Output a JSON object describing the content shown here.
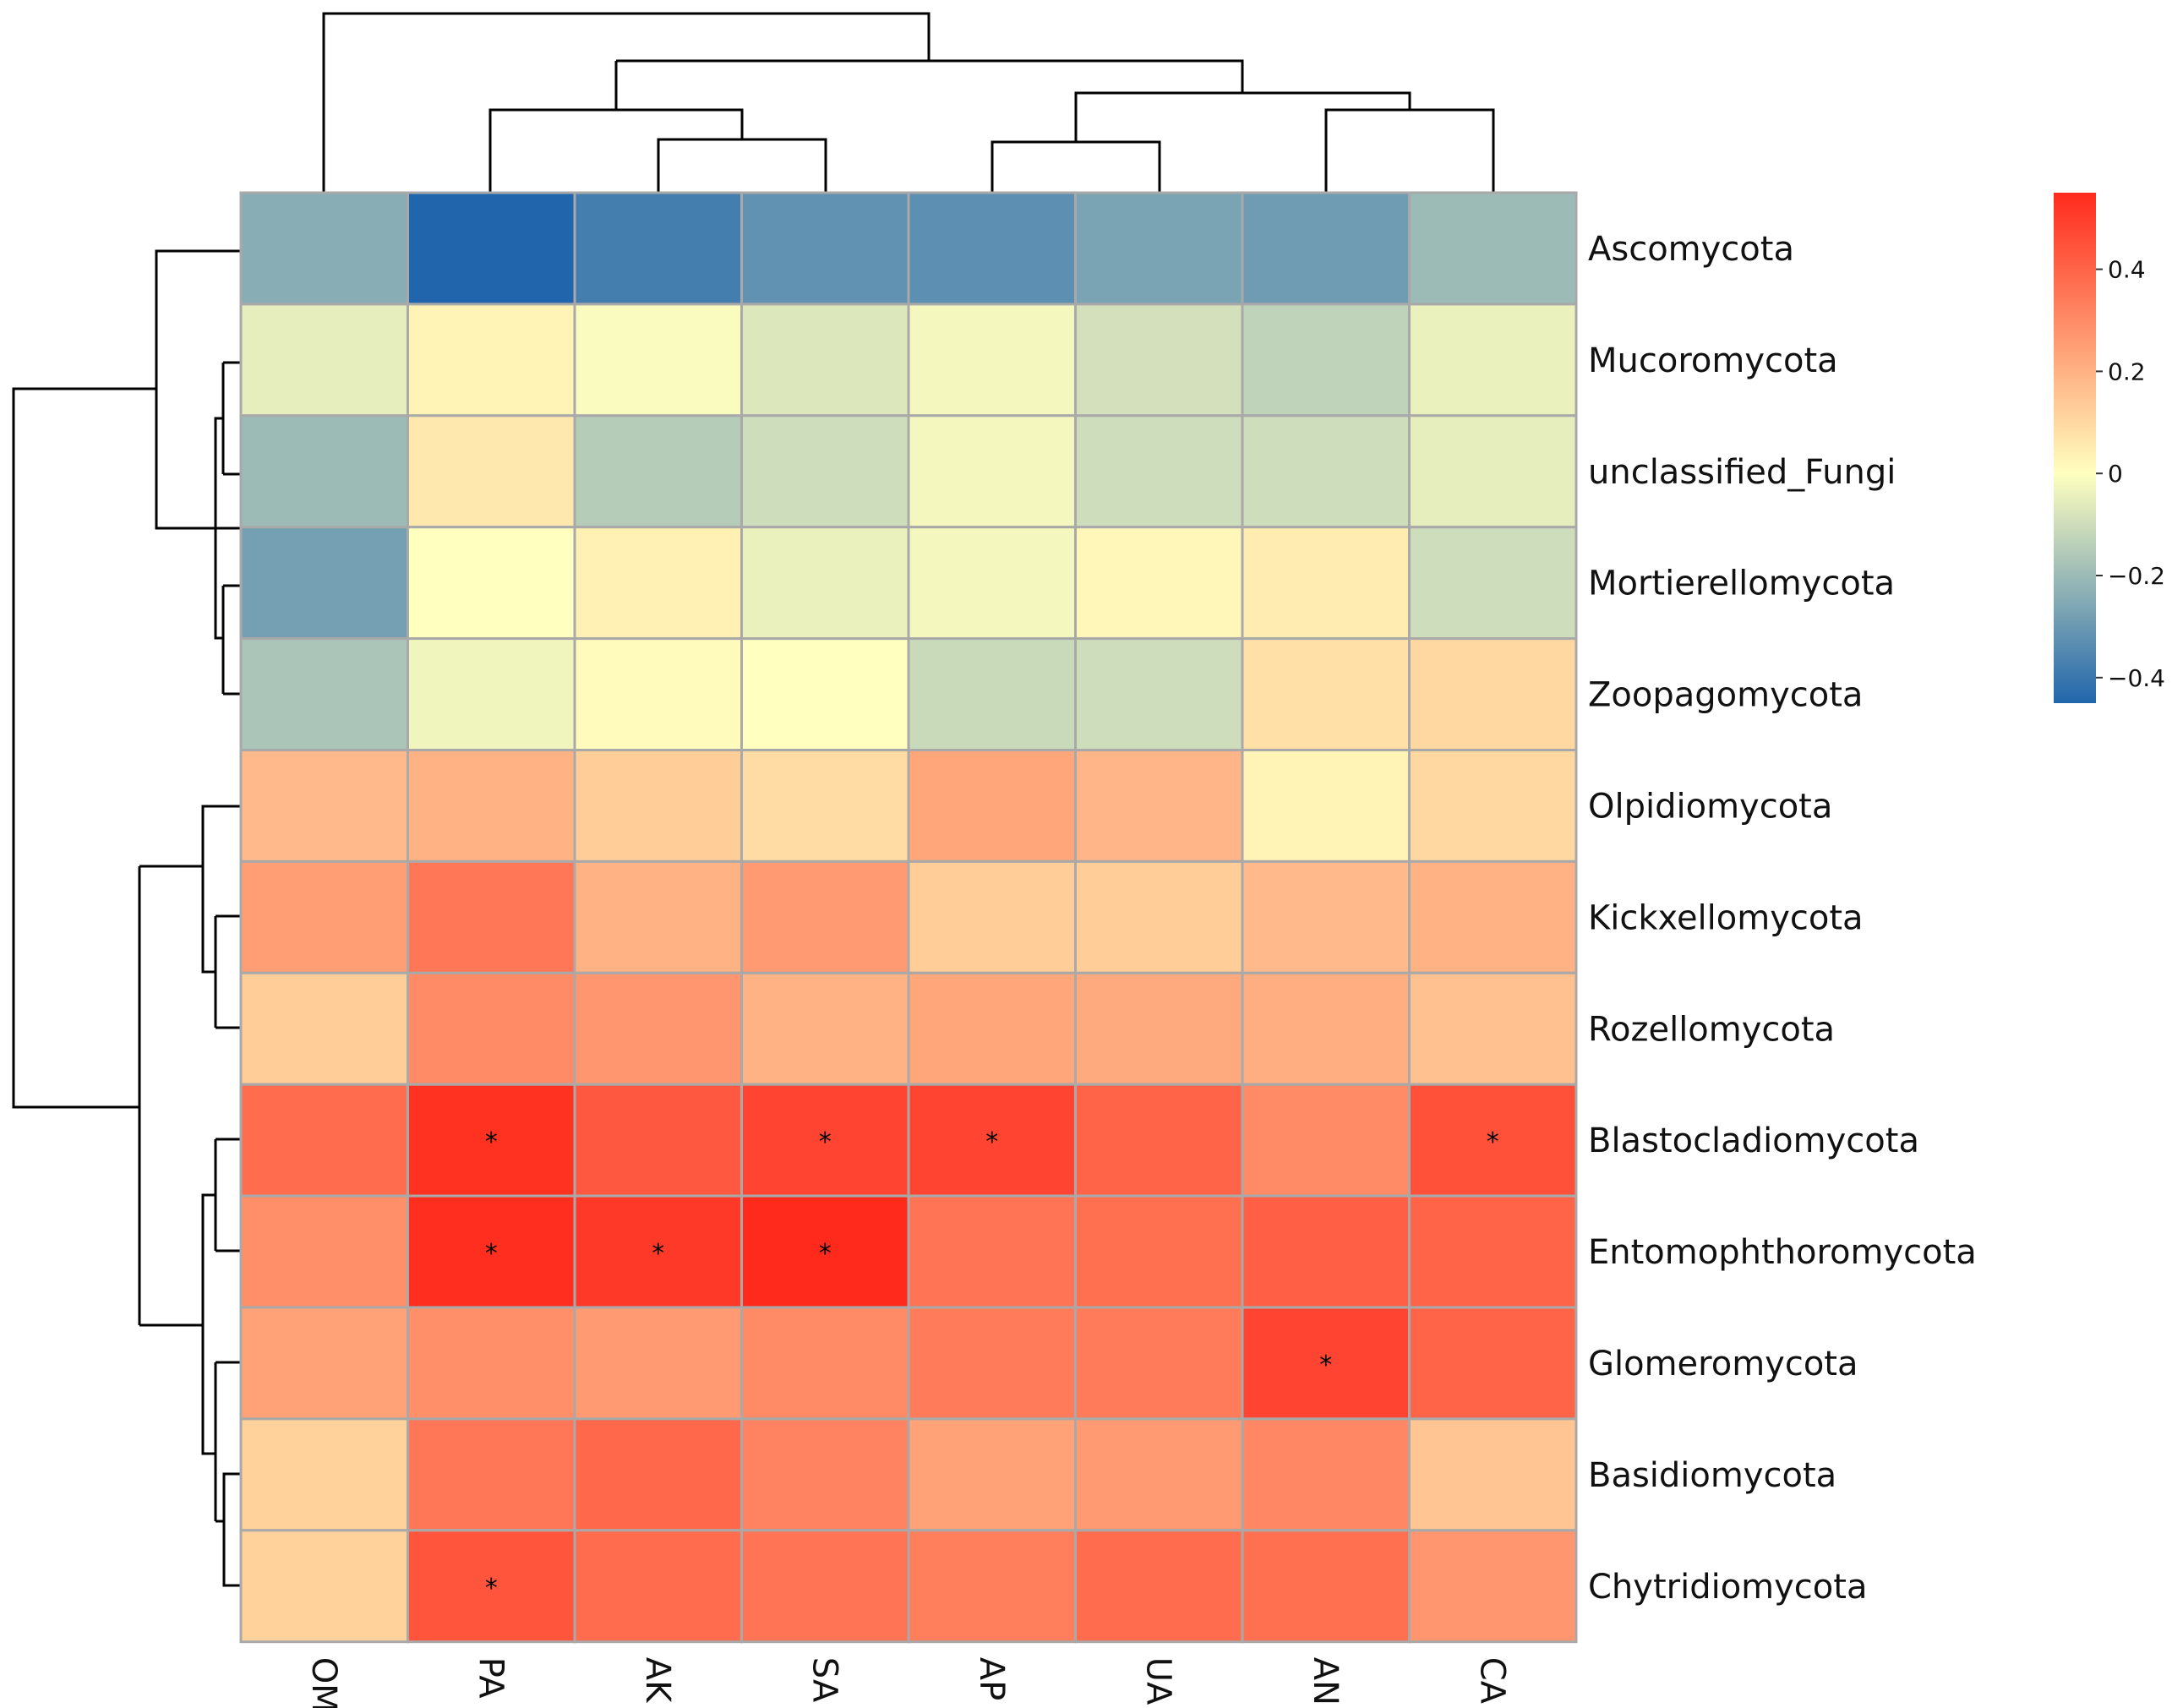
{
  "chart_data": {
    "type": "heatmap",
    "title": "",
    "columns": [
      "OM",
      "PA",
      "AK",
      "SA",
      "AP",
      "UA",
      "AN",
      "CA"
    ],
    "rows": [
      "Ascomycota",
      "Mucoromycota",
      "unclassified_Fungi",
      "Mortierellomycota",
      "Zoopagomycota",
      "Olpidiomycota",
      "Kickxellomycota",
      "Rozellomycota",
      "Blastocladiomycota",
      "Entomophthoromycota",
      "Glomeromycota",
      "Basidiomycota",
      "Chytridiomycota"
    ],
    "values": [
      [
        -0.24,
        -0.45,
        -0.38,
        -0.32,
        -0.33,
        -0.27,
        -0.29,
        -0.2
      ],
      [
        -0.05,
        0.03,
        -0.01,
        -0.07,
        -0.02,
        -0.09,
        -0.13,
        -0.04
      ],
      [
        -0.2,
        0.06,
        -0.15,
        -0.1,
        -0.02,
        -0.1,
        -0.1,
        -0.05
      ],
      [
        -0.28,
        0.0,
        0.04,
        -0.04,
        -0.02,
        0.02,
        0.05,
        -0.1
      ],
      [
        -0.17,
        -0.03,
        0.01,
        0.0,
        -0.11,
        -0.1,
        0.08,
        0.1
      ],
      [
        0.18,
        0.2,
        0.13,
        0.09,
        0.23,
        0.19,
        0.03,
        0.1
      ],
      [
        0.25,
        0.35,
        0.2,
        0.26,
        0.13,
        0.13,
        0.18,
        0.2
      ],
      [
        0.13,
        0.3,
        0.27,
        0.2,
        0.23,
        0.22,
        0.21,
        0.16
      ],
      [
        0.38,
        0.53,
        0.43,
        0.48,
        0.48,
        0.4,
        0.3,
        0.45
      ],
      [
        0.29,
        0.54,
        0.51,
        0.55,
        0.36,
        0.37,
        0.41,
        0.4
      ],
      [
        0.24,
        0.29,
        0.26,
        0.3,
        0.34,
        0.34,
        0.48,
        0.4
      ],
      [
        0.12,
        0.35,
        0.39,
        0.32,
        0.24,
        0.26,
        0.31,
        0.15
      ],
      [
        0.12,
        0.44,
        0.38,
        0.36,
        0.33,
        0.38,
        0.37,
        0.27
      ]
    ],
    "significance": [
      [
        "",
        "",
        "",
        "",
        "",
        "",
        "",
        ""
      ],
      [
        "",
        "",
        "",
        "",
        "",
        "",
        "",
        ""
      ],
      [
        "",
        "",
        "",
        "",
        "",
        "",
        "",
        ""
      ],
      [
        "",
        "",
        "",
        "",
        "",
        "",
        "",
        ""
      ],
      [
        "",
        "",
        "",
        "",
        "",
        "",
        "",
        ""
      ],
      [
        "",
        "",
        "",
        "",
        "",
        "",
        "",
        ""
      ],
      [
        "",
        "",
        "",
        "",
        "",
        "",
        "",
        ""
      ],
      [
        "",
        "",
        "",
        "",
        "",
        "",
        "",
        ""
      ],
      [
        "",
        "*",
        "",
        "*",
        "*",
        "",
        "",
        "*"
      ],
      [
        "",
        "*",
        "*",
        "*",
        "",
        "",
        "",
        ""
      ],
      [
        "",
        "",
        "",
        "",
        "",
        "",
        "*",
        ""
      ],
      [
        "",
        "",
        "",
        "",
        "",
        "",
        "",
        ""
      ],
      [
        "",
        "*",
        "",
        "",
        "",
        "",
        "",
        ""
      ]
    ],
    "color_scale": {
      "range": [
        -0.45,
        0.55
      ],
      "low_color": "#2166ac",
      "mid_color": "#ffffbf",
      "high_color": "#ff2a1c"
    },
    "legend": {
      "ticks": [
        0.4,
        0.2,
        0,
        -0.2,
        -0.4
      ],
      "tick_labels": [
        "0.4",
        "0.2",
        "0",
        "−0.2",
        "−0.4"
      ],
      "placement": "right"
    },
    "column_dendrogram": "((OM,((PA,(AK,SA)),((AP,UA),(AN,CA)))))",
    "row_dendrogram": "((Ascomycota,(((Mucoromycota,unclassified_Fungi),(Mortierellomycota,Zoopagomycota)))),((Olpidiomycota,(Kickxellomycota,Rozellomycota)),((Blastocladiomycota,Entomophthoromycota),(Glomeromycota,(Basidiomycota,Chytridiomycota)))))"
  }
}
